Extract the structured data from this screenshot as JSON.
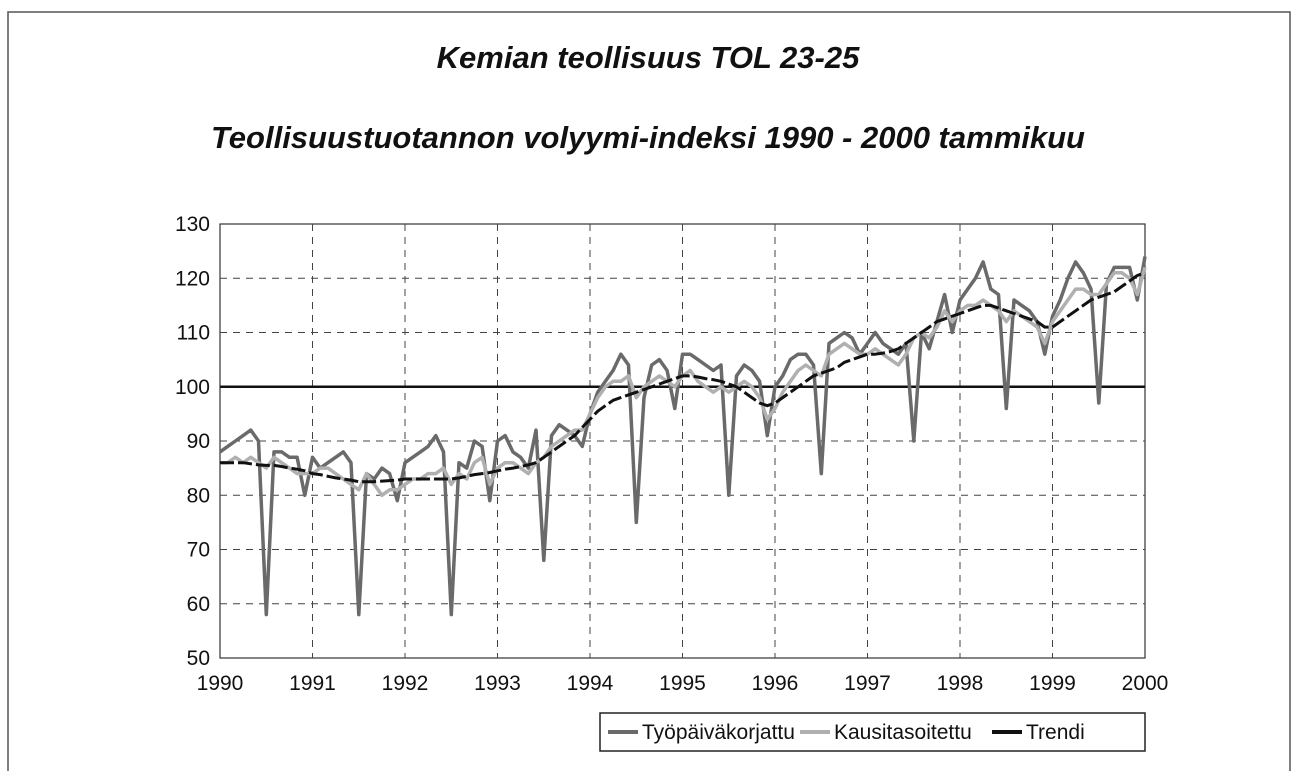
{
  "chart_data": {
    "type": "line",
    "title": "Kemian teollisuus TOL 23-25",
    "subtitle": "Teollisuustuotannon volyymi-indeksi 1990 - 2000 tammikuu",
    "categories": [
      "1990",
      null,
      null,
      null,
      null,
      null,
      null,
      null,
      null,
      null,
      null,
      null,
      "1991",
      null,
      null,
      null,
      null,
      null,
      null,
      null,
      null,
      null,
      null,
      null,
      "1992",
      null,
      null,
      null,
      null,
      null,
      null,
      null,
      null,
      null,
      null,
      null,
      "1993",
      null,
      null,
      null,
      null,
      null,
      null,
      null,
      null,
      null,
      null,
      null,
      "1994",
      null,
      null,
      null,
      null,
      null,
      null,
      null,
      null,
      null,
      null,
      null,
      "1995",
      null,
      null,
      null,
      null,
      null,
      null,
      null,
      null,
      null,
      null,
      null,
      "1996",
      null,
      null,
      null,
      null,
      null,
      null,
      null,
      null,
      null,
      null,
      null,
      "1997",
      null,
      null,
      null,
      null,
      null,
      null,
      null,
      null,
      null,
      null,
      null,
      "1998",
      null,
      null,
      null,
      null,
      null,
      null,
      null,
      null,
      null,
      null,
      null,
      "1999",
      null,
      null,
      null,
      null,
      null,
      null,
      null,
      null,
      null,
      null,
      null,
      "2000"
    ],
    "series": [
      {
        "name": "Työpäiväkorjattu",
        "color": "#6a6a6a",
        "values": [
          88,
          89,
          90,
          91,
          92,
          90,
          58,
          88,
          88,
          87,
          87,
          80,
          87,
          85,
          86,
          87,
          88,
          86,
          58,
          84,
          83,
          85,
          84,
          79,
          86,
          87,
          88,
          89,
          91,
          88,
          58,
          86,
          85,
          90,
          89,
          79,
          90,
          91,
          88,
          87,
          85,
          92,
          68,
          91,
          93,
          92,
          91,
          89,
          95,
          99,
          101,
          103,
          106,
          104,
          75,
          98,
          104,
          105,
          103,
          96,
          106,
          106,
          105,
          104,
          103,
          104,
          80,
          102,
          104,
          103,
          101,
          91,
          100,
          102,
          105,
          106,
          106,
          104,
          84,
          108,
          109,
          110,
          109,
          106,
          108,
          110,
          108,
          107,
          106,
          108,
          90,
          110,
          107,
          112,
          117,
          110,
          116,
          118,
          120,
          123,
          118,
          117,
          96,
          116,
          115,
          114,
          112,
          106,
          113,
          116,
          120,
          123,
          121,
          118,
          97,
          119,
          122,
          122,
          122,
          116,
          124
        ]
      },
      {
        "name": "Kausitasoitettu",
        "color": "#b0b0b0",
        "values": [
          86,
          86,
          87,
          86,
          87,
          86,
          85,
          87,
          86,
          85,
          84,
          84,
          84,
          85,
          85,
          84,
          83,
          82,
          81,
          84,
          82,
          80,
          81,
          81,
          82,
          83,
          83,
          84,
          84,
          85,
          82,
          84,
          83,
          86,
          87,
          82,
          85,
          86,
          86,
          85,
          84,
          86,
          87,
          89,
          90,
          91,
          92,
          92,
          95,
          98,
          100,
          101,
          101,
          102,
          98,
          100,
          101,
          102,
          101,
          100,
          102,
          103,
          101,
          100,
          99,
          100,
          99,
          100,
          101,
          100,
          98,
          94,
          96,
          99,
          101,
          103,
          104,
          103,
          102,
          106,
          107,
          108,
          107,
          106,
          106,
          107,
          106,
          105,
          104,
          106,
          109,
          110,
          109,
          111,
          114,
          112,
          114,
          115,
          115,
          116,
          115,
          114,
          112,
          114,
          113,
          112,
          111,
          108,
          112,
          114,
          116,
          118,
          118,
          117,
          117,
          119,
          121,
          121,
          120,
          117,
          122
        ]
      },
      {
        "name": "Trendi",
        "color": "#111111",
        "values": [
          86,
          86,
          86,
          86,
          85.8,
          85.6,
          85.5,
          85.5,
          85.3,
          85,
          84.8,
          84.5,
          84,
          83.8,
          83.5,
          83.2,
          83,
          82.8,
          82.5,
          82.5,
          82.5,
          82.6,
          82.7,
          82.8,
          83,
          83,
          83,
          83,
          83,
          83,
          83,
          83.2,
          83.5,
          83.8,
          84,
          84.2,
          84.5,
          84.8,
          85,
          85.3,
          85.6,
          86,
          87,
          88,
          89,
          90,
          91,
          92.5,
          94,
          95.5,
          96.5,
          97.5,
          98,
          98.5,
          99,
          99.5,
          100,
          100.5,
          101,
          101.5,
          102,
          102,
          101.8,
          101.5,
          101.3,
          101,
          100.5,
          100,
          99,
          98,
          97,
          96.5,
          97,
          98,
          99,
          100,
          101,
          102,
          102.5,
          103,
          103.5,
          104.5,
          105,
          105.5,
          106,
          106,
          106.2,
          106.5,
          107,
          108,
          109,
          110,
          111,
          112,
          112.5,
          113,
          113.5,
          114,
          114.5,
          115,
          115,
          114.5,
          114,
          113.5,
          113,
          112.5,
          112,
          111,
          111,
          112,
          113,
          114,
          115,
          116,
          116.5,
          117,
          117.5,
          118.5,
          119.5,
          120.5,
          121
        ]
      }
    ],
    "reference_line": 100,
    "ylim": [
      50,
      130
    ],
    "yticks": [
      50,
      60,
      70,
      80,
      90,
      100,
      110,
      120,
      130
    ],
    "grid": true,
    "legend": "bottom-right"
  }
}
